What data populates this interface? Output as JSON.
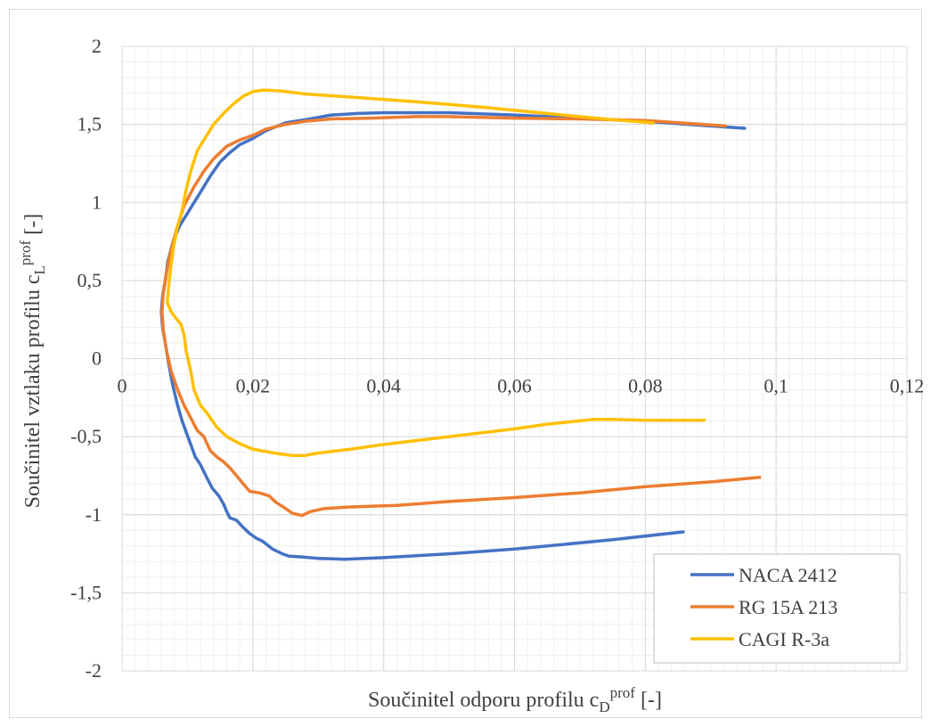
{
  "chart_data": {
    "type": "line",
    "xlabel": "Součinitel odporu profilu c",
    "xlabel_sub": "D",
    "xlabel_sup": "prof",
    "xlabel_unit": " [-]",
    "ylabel": "Součinitel vztlaku profilu c",
    "ylabel_sub": "L",
    "ylabel_sup": "prof",
    "ylabel_unit": " [-]",
    "xlim": [
      0,
      0.12
    ],
    "ylim": [
      -2,
      2
    ],
    "x_ticks": [
      0,
      0.02,
      0.04,
      0.06,
      0.08,
      0.1,
      0.12
    ],
    "x_tick_labels": [
      "0",
      "0,02",
      "0,04",
      "0,06",
      "0,08",
      "0,1",
      "0,12"
    ],
    "y_ticks": [
      2,
      1.5,
      1,
      0.5,
      0,
      -0.5,
      -1,
      -1.5,
      -2
    ],
    "y_tick_labels": [
      "2",
      "1,5",
      "1",
      "0,5",
      "0",
      "-0,5",
      "-1",
      "-1,5",
      "-2"
    ],
    "grid": true,
    "minor_grid": true,
    "legend_position": "bottom-right",
    "series": [
      {
        "name": "NACA 2412",
        "color": "#4472C4",
        "points": [
          [
            0.0858,
            -1.11
          ],
          [
            0.075,
            -1.16
          ],
          [
            0.06,
            -1.22
          ],
          [
            0.05,
            -1.25
          ],
          [
            0.04,
            -1.275
          ],
          [
            0.034,
            -1.285
          ],
          [
            0.03,
            -1.28
          ],
          [
            0.0275,
            -1.27
          ],
          [
            0.0255,
            -1.265
          ],
          [
            0.0245,
            -1.25
          ],
          [
            0.023,
            -1.22
          ],
          [
            0.0215,
            -1.17
          ],
          [
            0.0205,
            -1.15
          ],
          [
            0.0195,
            -1.12
          ],
          [
            0.0185,
            -1.08
          ],
          [
            0.0175,
            -1.035
          ],
          [
            0.0165,
            -1.02
          ],
          [
            0.016,
            -0.98
          ],
          [
            0.0155,
            -0.93
          ],
          [
            0.0148,
            -0.88
          ],
          [
            0.0138,
            -0.83
          ],
          [
            0.0128,
            -0.75
          ],
          [
            0.012,
            -0.68
          ],
          [
            0.0112,
            -0.63
          ],
          [
            0.0105,
            -0.55
          ],
          [
            0.0098,
            -0.47
          ],
          [
            0.0092,
            -0.4
          ],
          [
            0.0085,
            -0.3
          ],
          [
            0.0078,
            -0.18
          ],
          [
            0.0072,
            -0.05
          ],
          [
            0.0066,
            0.1
          ],
          [
            0.0062,
            0.2
          ],
          [
            0.006,
            0.3
          ],
          [
            0.0062,
            0.4
          ],
          [
            0.0066,
            0.5
          ],
          [
            0.007,
            0.62
          ],
          [
            0.0078,
            0.75
          ],
          [
            0.0088,
            0.85
          ],
          [
            0.01,
            0.93
          ],
          [
            0.011,
            1.0
          ],
          [
            0.0122,
            1.08
          ],
          [
            0.0135,
            1.17
          ],
          [
            0.015,
            1.26
          ],
          [
            0.0165,
            1.32
          ],
          [
            0.018,
            1.37
          ],
          [
            0.02,
            1.41
          ],
          [
            0.022,
            1.46
          ],
          [
            0.025,
            1.51
          ],
          [
            0.028,
            1.53
          ],
          [
            0.032,
            1.56
          ],
          [
            0.036,
            1.57
          ],
          [
            0.04,
            1.575
          ],
          [
            0.05,
            1.575
          ],
          [
            0.06,
            1.56
          ],
          [
            0.07,
            1.54
          ],
          [
            0.08,
            1.52
          ],
          [
            0.09,
            1.49
          ],
          [
            0.0952,
            1.475
          ]
        ]
      },
      {
        "name": "RG 15A 213",
        "color": "#ED7D31",
        "points": [
          [
            0.0975,
            -0.76
          ],
          [
            0.09,
            -0.79
          ],
          [
            0.08,
            -0.82
          ],
          [
            0.07,
            -0.86
          ],
          [
            0.06,
            -0.89
          ],
          [
            0.05,
            -0.915
          ],
          [
            0.042,
            -0.94
          ],
          [
            0.035,
            -0.95
          ],
          [
            0.031,
            -0.96
          ],
          [
            0.0288,
            -0.98
          ],
          [
            0.0275,
            -1.005
          ],
          [
            0.026,
            -0.99
          ],
          [
            0.025,
            -0.96
          ],
          [
            0.0235,
            -0.92
          ],
          [
            0.0225,
            -0.88
          ],
          [
            0.021,
            -0.86
          ],
          [
            0.0195,
            -0.85
          ],
          [
            0.0185,
            -0.8
          ],
          [
            0.0175,
            -0.75
          ],
          [
            0.0165,
            -0.7
          ],
          [
            0.0155,
            -0.66
          ],
          [
            0.0145,
            -0.63
          ],
          [
            0.0135,
            -0.59
          ],
          [
            0.0125,
            -0.5
          ],
          [
            0.0115,
            -0.46
          ],
          [
            0.0105,
            -0.38
          ],
          [
            0.0095,
            -0.3
          ],
          [
            0.0085,
            -0.2
          ],
          [
            0.0075,
            -0.08
          ],
          [
            0.0068,
            0.05
          ],
          [
            0.0063,
            0.18
          ],
          [
            0.0061,
            0.3
          ],
          [
            0.0063,
            0.42
          ],
          [
            0.0068,
            0.55
          ],
          [
            0.0075,
            0.7
          ],
          [
            0.0085,
            0.85
          ],
          [
            0.0095,
            0.98
          ],
          [
            0.011,
            1.1
          ],
          [
            0.0125,
            1.2
          ],
          [
            0.014,
            1.28
          ],
          [
            0.016,
            1.36
          ],
          [
            0.018,
            1.4
          ],
          [
            0.02,
            1.43
          ],
          [
            0.022,
            1.47
          ],
          [
            0.025,
            1.5
          ],
          [
            0.028,
            1.52
          ],
          [
            0.032,
            1.535
          ],
          [
            0.038,
            1.54
          ],
          [
            0.045,
            1.55
          ],
          [
            0.05,
            1.55
          ],
          [
            0.06,
            1.54
          ],
          [
            0.07,
            1.535
          ],
          [
            0.08,
            1.525
          ],
          [
            0.0922,
            1.49
          ]
        ]
      },
      {
        "name": "CAGI R-3a",
        "color": "#FFC000",
        "points": [
          [
            0.089,
            -0.395
          ],
          [
            0.085,
            -0.395
          ],
          [
            0.08,
            -0.395
          ],
          [
            0.075,
            -0.39
          ],
          [
            0.072,
            -0.39
          ],
          [
            0.065,
            -0.42
          ],
          [
            0.06,
            -0.45
          ],
          [
            0.05,
            -0.5
          ],
          [
            0.04,
            -0.55
          ],
          [
            0.035,
            -0.58
          ],
          [
            0.03,
            -0.605
          ],
          [
            0.028,
            -0.62
          ],
          [
            0.026,
            -0.62
          ],
          [
            0.024,
            -0.61
          ],
          [
            0.022,
            -0.595
          ],
          [
            0.02,
            -0.58
          ],
          [
            0.018,
            -0.545
          ],
          [
            0.016,
            -0.5
          ],
          [
            0.0145,
            -0.44
          ],
          [
            0.013,
            -0.35
          ],
          [
            0.012,
            -0.3
          ],
          [
            0.011,
            -0.2
          ],
          [
            0.0105,
            -0.08
          ],
          [
            0.0098,
            0.05
          ],
          [
            0.0095,
            0.15
          ],
          [
            0.009,
            0.22
          ],
          [
            0.0082,
            0.26
          ],
          [
            0.0075,
            0.3
          ],
          [
            0.0069,
            0.36
          ],
          [
            0.0072,
            0.5
          ],
          [
            0.0078,
            0.7
          ],
          [
            0.0085,
            0.85
          ],
          [
            0.0092,
            0.95
          ],
          [
            0.0098,
            1.08
          ],
          [
            0.0105,
            1.2
          ],
          [
            0.0115,
            1.33
          ],
          [
            0.0128,
            1.42
          ],
          [
            0.014,
            1.5
          ],
          [
            0.0155,
            1.57
          ],
          [
            0.017,
            1.63
          ],
          [
            0.0185,
            1.68
          ],
          [
            0.02,
            1.71
          ],
          [
            0.0215,
            1.72
          ],
          [
            0.024,
            1.715
          ],
          [
            0.028,
            1.695
          ],
          [
            0.035,
            1.675
          ],
          [
            0.045,
            1.645
          ],
          [
            0.055,
            1.61
          ],
          [
            0.065,
            1.57
          ],
          [
            0.075,
            1.53
          ],
          [
            0.0812,
            1.51
          ]
        ]
      }
    ]
  }
}
